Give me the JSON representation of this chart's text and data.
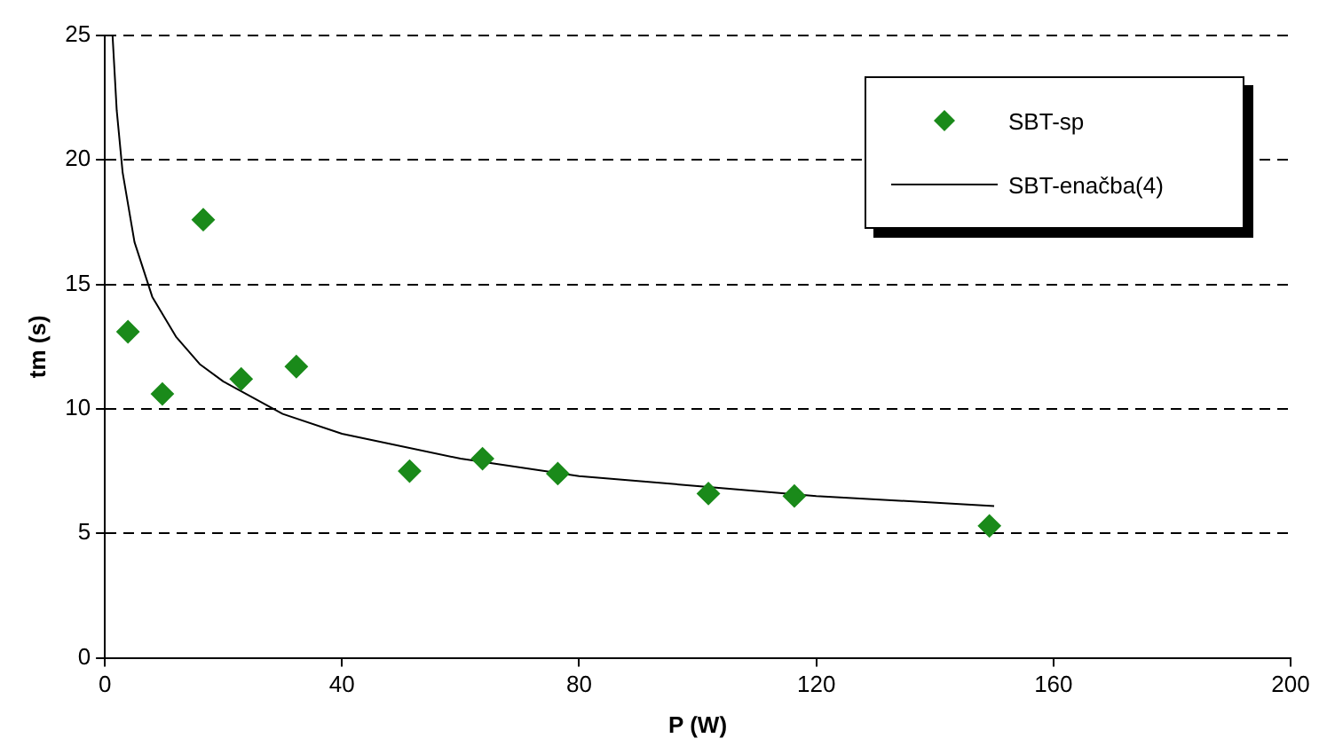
{
  "chart_data": {
    "type": "scatter",
    "xlabel": "P (W)",
    "ylabel": "tm (s)",
    "xlim": [
      0,
      200
    ],
    "xticks": [
      0,
      40,
      80,
      120,
      160,
      200
    ],
    "ylim": [
      0,
      25
    ],
    "yticks": [
      0,
      5,
      10,
      15,
      20,
      25
    ],
    "grid": "y",
    "legend": "top right",
    "series": [
      {
        "name": "SBT-sp",
        "type": "scatter",
        "marker": "diamond",
        "color": "#1a8a1a",
        "x": [
          3.9,
          9.7,
          16.6,
          23.0,
          32.3,
          51.4,
          63.7,
          76.4,
          101.8,
          116.3,
          149.2
        ],
        "values": [
          13.1,
          10.6,
          17.6,
          11.2,
          11.7,
          7.5,
          8.0,
          7.4,
          6.6,
          6.5,
          5.3
        ]
      },
      {
        "name": "SBT-enačba(4)",
        "type": "line",
        "marker": "none",
        "line_style": "solid",
        "color": "#000000",
        "x": [
          1.3,
          2,
          3,
          5,
          8,
          12,
          16,
          20,
          30,
          40,
          60,
          80,
          100,
          120,
          150
        ],
        "values": [
          25.0,
          22.0,
          19.5,
          16.7,
          14.5,
          12.9,
          11.8,
          11.1,
          9.8,
          9.0,
          8.0,
          7.3,
          6.9,
          6.5,
          6.1
        ]
      }
    ]
  }
}
